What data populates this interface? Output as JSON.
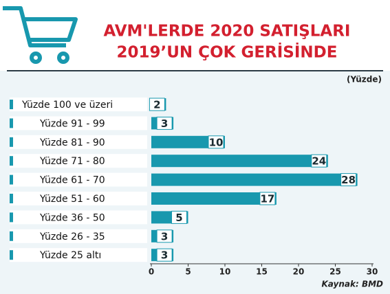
{
  "chart_data": {
    "type": "hbar",
    "title": [
      "AVM'LERDE 2020 SATIŞLARI",
      "2019’UN ÇOK GERİSİNDE"
    ],
    "unit_label": "(Yüzde)",
    "source": "Kaynak: BMD",
    "categories": [
      "Yüzde 100 ve üzeri",
      "Yüzde 91 - 99",
      "Yüzde 81 - 90",
      "Yüzde 71 - 80",
      "Yüzde 61 - 70",
      "Yüzde 51 - 60",
      "Yüzde 36 - 50",
      "Yüzde 26 - 35",
      "Yüzde 25 altı"
    ],
    "values": [
      2,
      3,
      10,
      24,
      28,
      17,
      5,
      3,
      3
    ],
    "color": "#1898ae",
    "xlim": [
      0,
      30
    ],
    "xticks": [
      0,
      5,
      10,
      15,
      20,
      25,
      30
    ]
  }
}
